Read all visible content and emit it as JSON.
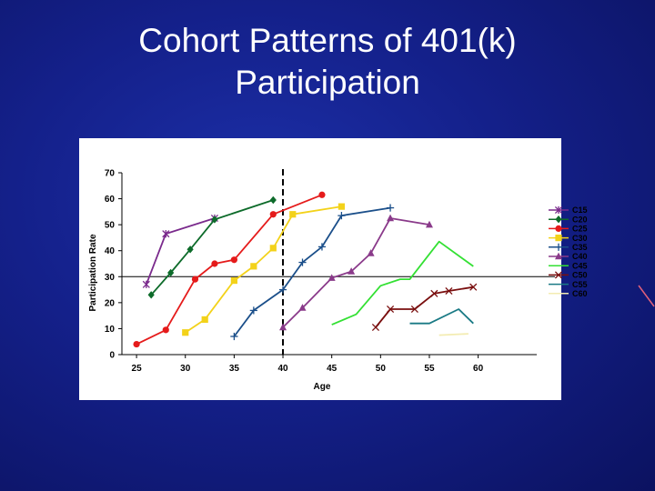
{
  "slide": {
    "title_line1": "Cohort Patterns of 401(k)",
    "title_line2": "Participation"
  },
  "colors": {
    "background": "#14208a",
    "title": "#ffffff",
    "panel": "#ffffff"
  },
  "chart_data": {
    "type": "line",
    "title": "",
    "xlabel": "Age",
    "ylabel": "Participation Rate",
    "xlim": [
      23.5,
      66
    ],
    "ylim": [
      0,
      70
    ],
    "xticks": [
      25,
      30,
      35,
      40,
      45,
      50,
      55,
      60
    ],
    "yticks": [
      0,
      10,
      20,
      30,
      40,
      50,
      60,
      70
    ],
    "grid": false,
    "reference_line_y": 30,
    "reference_line_x": 40,
    "legend_position": "right",
    "series": [
      {
        "name": "C15",
        "color": "#7a2a8c",
        "marker": "star",
        "points": [
          [
            26,
            27
          ],
          [
            28,
            46.5
          ],
          [
            33,
            52.5
          ]
        ]
      },
      {
        "name": "C20",
        "color": "#0d6b2a",
        "marker": "diamond",
        "points": [
          [
            26.5,
            23
          ],
          [
            28.5,
            31.5
          ],
          [
            30.5,
            40.5
          ],
          [
            33,
            52
          ],
          [
            39,
            59.5
          ]
        ]
      },
      {
        "name": "C25",
        "color": "#e51b1b",
        "marker": "circle",
        "points": [
          [
            25,
            4
          ],
          [
            28,
            9.5
          ],
          [
            31,
            29
          ],
          [
            33,
            35
          ],
          [
            35,
            36.5
          ],
          [
            39,
            54
          ],
          [
            44,
            61.5
          ]
        ]
      },
      {
        "name": "C30",
        "color": "#f3d21a",
        "marker": "square",
        "points": [
          [
            30,
            8.5
          ],
          [
            32,
            13.5
          ],
          [
            35,
            28.5
          ],
          [
            37,
            34
          ],
          [
            39,
            41
          ],
          [
            41,
            54
          ],
          [
            46,
            57
          ]
        ]
      },
      {
        "name": "C35",
        "color": "#1b4f8a",
        "marker": "plus",
        "points": [
          [
            35,
            7
          ],
          [
            37,
            17
          ],
          [
            40,
            25
          ],
          [
            42,
            35.5
          ],
          [
            44,
            41.5
          ],
          [
            46,
            53.5
          ],
          [
            51,
            56.5
          ]
        ]
      },
      {
        "name": "C40",
        "color": "#8a3a8a",
        "marker": "triangle",
        "points": [
          [
            40,
            10.5
          ],
          [
            42,
            18
          ],
          [
            45,
            29.5
          ],
          [
            47,
            32
          ],
          [
            49,
            39
          ],
          [
            51,
            52.5
          ],
          [
            55,
            50
          ]
        ]
      },
      {
        "name": "C45",
        "color": "#33e033",
        "marker": "none",
        "points": [
          [
            45,
            11.5
          ],
          [
            47.5,
            15.5
          ],
          [
            50,
            26.5
          ],
          [
            52,
            29
          ],
          [
            53,
            29
          ],
          [
            56,
            43.5
          ],
          [
            59.5,
            34
          ]
        ]
      },
      {
        "name": "C50",
        "color": "#7a0f0f",
        "marker": "x",
        "points": [
          [
            49.5,
            10.5
          ],
          [
            51,
            17.5
          ],
          [
            53.5,
            17.5
          ],
          [
            55.5,
            23.5
          ],
          [
            57,
            24.5
          ],
          [
            59.5,
            26
          ]
        ]
      },
      {
        "name": "C55",
        "color": "#1a7a85",
        "marker": "none",
        "points": [
          [
            53,
            12
          ],
          [
            55,
            12
          ],
          [
            58,
            17.5
          ],
          [
            59.5,
            12
          ]
        ]
      },
      {
        "name": "C60",
        "color": "#f3ecb2",
        "marker": "none",
        "points": [
          [
            56,
            7.5
          ],
          [
            59,
            8
          ]
        ]
      }
    ]
  }
}
